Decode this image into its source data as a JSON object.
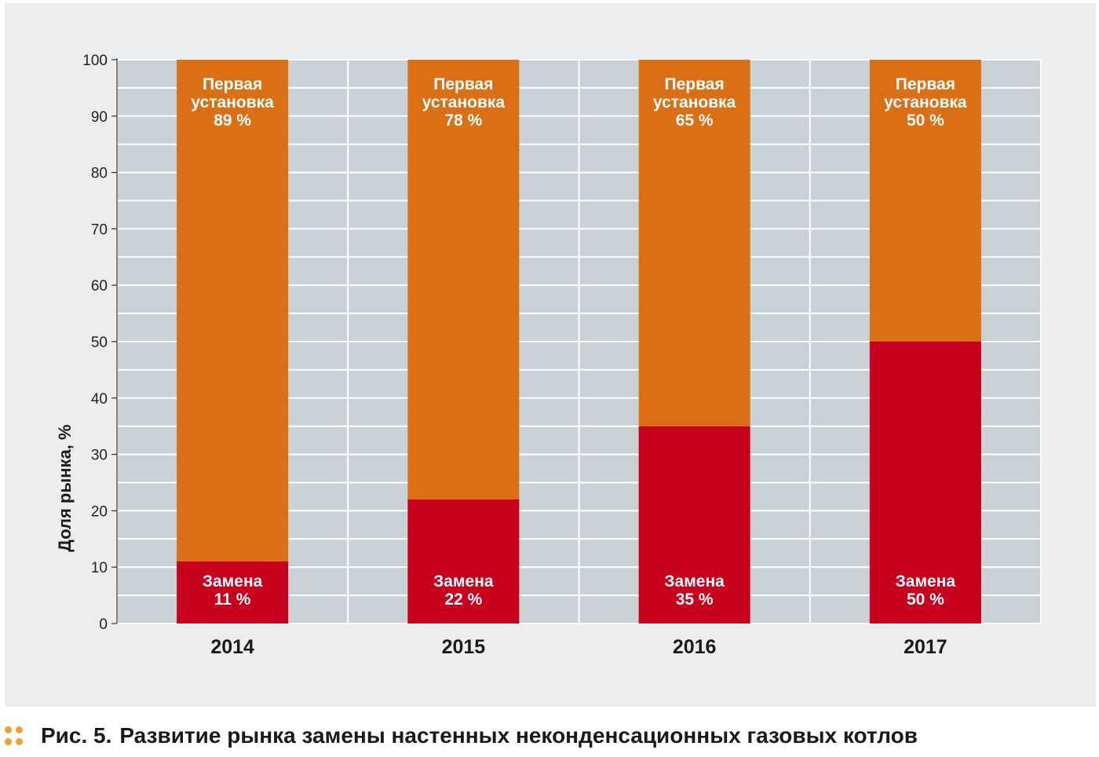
{
  "chart_data": {
    "type": "bar",
    "stacked": true,
    "categories": [
      "2014",
      "2015",
      "2016",
      "2017"
    ],
    "series": [
      {
        "name": "Замена",
        "values": [
          11,
          22,
          35,
          50
        ],
        "color": "#c8001e"
      },
      {
        "name": "Первая установка",
        "values": [
          89,
          78,
          65,
          50
        ],
        "color": "#db6f15"
      }
    ],
    "segment_labels": {
      "bottom": [
        [
          "Замена",
          "11 %"
        ],
        [
          "Замена",
          "22 %"
        ],
        [
          "Замена",
          "35 %"
        ],
        [
          "Замена",
          "50 %"
        ]
      ],
      "top": [
        [
          "Первая",
          "установка",
          "89 %"
        ],
        [
          "Первая",
          "установка",
          "78 %"
        ],
        [
          "Первая",
          "установка",
          "65 %"
        ],
        [
          "Первая",
          "установка",
          "50 %"
        ]
      ]
    },
    "ylabel": "Доля рынка, %",
    "xlabel": "",
    "ylim": [
      0,
      100
    ],
    "yticks": [
      0,
      10,
      20,
      30,
      40,
      50,
      60,
      70,
      80,
      90,
      100
    ],
    "grid": true,
    "grid_color": "#ffffff",
    "plot_background": "#c9d1d6",
    "panel_background": "#ecedee"
  },
  "caption": {
    "label": "Рис. 5.",
    "text": "Развитие рынка замены настенных неконденсационных газовых котлов",
    "icon": "dots-icon",
    "icon_color": "#f0a030"
  }
}
